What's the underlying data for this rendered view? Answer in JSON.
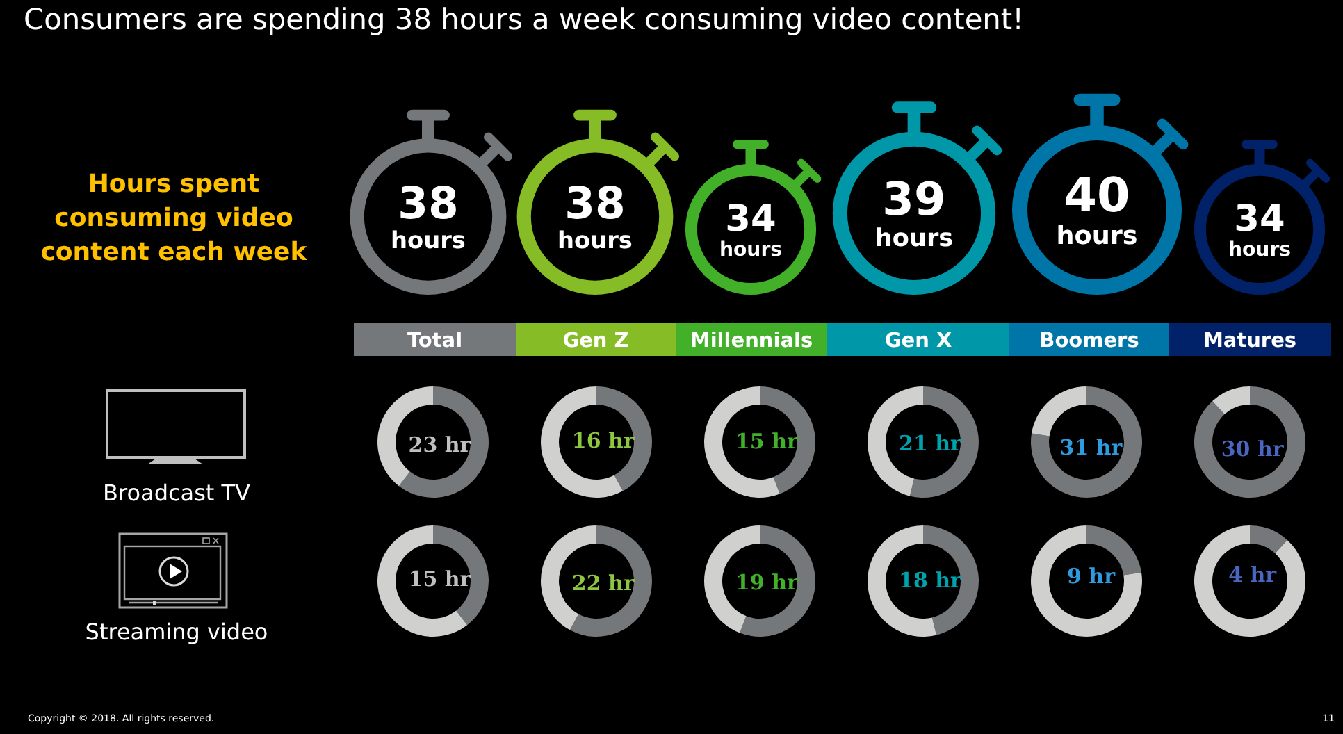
{
  "chart_data": [
    {
      "type": "other",
      "title": "Consumers are spending 38 hours a week consuming video content!",
      "subtitle": "Hours spent consuming video content each week",
      "categories": [
        "Total",
        "Gen Z",
        "Millennials",
        "Gen X",
        "Boomers",
        "Matures"
      ],
      "values": [
        38,
        38,
        34,
        39,
        40,
        34
      ],
      "value_labels": [
        "38 hours",
        "38 hours",
        "34 hours",
        "39 hours",
        "40 hours",
        "34 hours"
      ],
      "colors": [
        "#75787b",
        "#86bc25",
        "#43b02a",
        "#0097a9",
        "#0076a8",
        "#012169"
      ],
      "annotations": [
        "Copyright © 2018. All rights reserved.",
        "11"
      ]
    },
    {
      "type": "donut",
      "title": "Broadcast TV",
      "categories": [
        null,
        null
      ],
      "colors": [
        "#75787b",
        "#d0d0ce"
      ],
      "series": [
        {
          "color": "#c0c0c0",
          "values": [
            23,
            15
          ],
          "value_labels": [
            "23 hr",
            null
          ]
        },
        {
          "color": "#8dc63f",
          "values": [
            16,
            22
          ],
          "value_labels": [
            "16 hr",
            null
          ]
        },
        {
          "color": "#43b02a",
          "values": [
            15,
            19
          ],
          "value_labels": [
            "15 hr",
            null
          ]
        },
        {
          "color": "#00a3ad",
          "values": [
            21,
            18
          ],
          "value_labels": [
            "21 hr",
            null
          ]
        },
        {
          "color": "#2e9be0",
          "values": [
            31,
            9
          ],
          "value_labels": [
            "31 hr",
            null
          ]
        },
        {
          "color": "#4a66c0",
          "values": [
            30,
            4
          ],
          "value_labels": [
            "30 hr",
            null
          ]
        }
      ]
    },
    {
      "type": "donut",
      "title": "Streaming video",
      "categories": [
        null,
        null
      ],
      "colors": [
        "#75787b",
        "#d0d0ce"
      ],
      "series": [
        {
          "color": "#c0c0c0",
          "values": [
            15,
            23
          ],
          "value_labels": [
            "15 hr",
            null
          ]
        },
        {
          "color": "#8dc63f",
          "values": [
            22,
            16
          ],
          "value_labels": [
            "22 hr",
            null
          ]
        },
        {
          "color": "#43b02a",
          "values": [
            19,
            15
          ],
          "value_labels": [
            "19 hr",
            null
          ]
        },
        {
          "color": "#00a3ad",
          "values": [
            18,
            21
          ],
          "value_labels": [
            "18 hr",
            null
          ]
        },
        {
          "color": "#2e9be0",
          "values": [
            9,
            31
          ],
          "value_labels": [
            "9 hr",
            null
          ]
        },
        {
          "color": "#4a66c0",
          "values": [
            4,
            30
          ],
          "value_labels": [
            "4 hr",
            null
          ]
        }
      ]
    }
  ]
}
